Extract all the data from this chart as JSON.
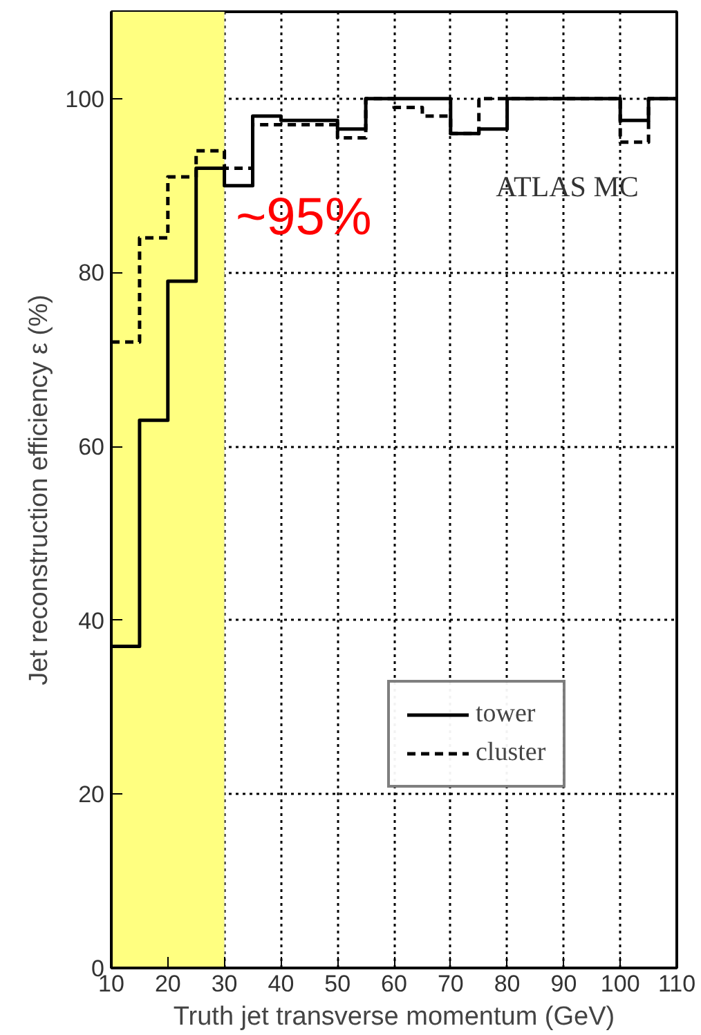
{
  "chart_data": {
    "type": "step",
    "xlabel": "Truth jet transverse momentum (GeV)",
    "ylabel": "Jet reconstruction efficiency ε (%)",
    "annotations": [
      "~95%",
      "ATLAS MC"
    ],
    "x": [
      10,
      15,
      20,
      25,
      30,
      35,
      40,
      45,
      50,
      55,
      60,
      65,
      70,
      75,
      80,
      85,
      90,
      95,
      100,
      105,
      110
    ],
    "series": [
      {
        "name": "tower",
        "color": "#000000",
        "line_style": "solid",
        "values": [
          37,
          63,
          79,
          92,
          90,
          98,
          97.5,
          97.5,
          96.5,
          100,
          100,
          100,
          96,
          96.5,
          100,
          100,
          100,
          100,
          97.5,
          100,
          100
        ]
      },
      {
        "name": "cluster",
        "color": "#000000",
        "line_style": "dashed",
        "values": [
          72,
          84,
          91,
          94,
          92,
          97,
          97,
          97,
          95.5,
          100,
          99,
          98,
          96,
          100,
          100,
          100,
          100,
          100,
          95,
          100,
          100
        ]
      }
    ],
    "bands": [
      {
        "axis": "x",
        "from": 10,
        "to": 30,
        "color": "#ffff80"
      }
    ],
    "xlim": [
      10,
      110
    ],
    "xticks": [
      10,
      20,
      30,
      40,
      50,
      60,
      70,
      80,
      90,
      100,
      110
    ],
    "ylim": [
      0,
      110
    ],
    "yticks": [
      0,
      20,
      40,
      60,
      80,
      100
    ],
    "grid": true,
    "legend": "bottom"
  }
}
